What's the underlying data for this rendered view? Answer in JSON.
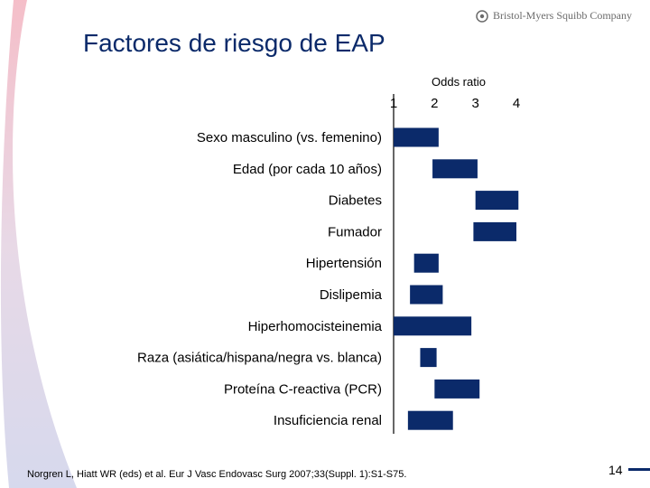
{
  "slide": {
    "title": "Factores de riesgo de EAP",
    "company": "Bristol-Myers Squibb Company",
    "footnote": "Norgren L, Hiatt WR (eds) et al. Eur J Vasc Endovasc Surg 2007;33(Suppl. 1):S1-S75.",
    "page_number": "14",
    "accent_color": "#0b2a6a",
    "logo_icon": "bms-logo-icon"
  },
  "chart_data": {
    "type": "bar",
    "orientation": "horizontal-range",
    "axis_title": "Odds ratio",
    "xlim": [
      1,
      4
    ],
    "xticks": [
      1,
      2,
      3,
      4
    ],
    "bar_color": "#0b2a6a",
    "categories": [
      "Sexo masculino (vs. femenino)",
      "Edad (por cada 10 años)",
      "Diabetes",
      "Fumador",
      "Hipertensión",
      "Dislipemia",
      "Hiperhomocisteinemia",
      "Raza (asiática/hispana/negra vs. blanca)",
      "Proteína C-reactiva (PCR)",
      "Insuficiencia renal"
    ],
    "ranges": [
      [
        1.0,
        2.1
      ],
      [
        1.95,
        3.05
      ],
      [
        3.0,
        4.05
      ],
      [
        2.95,
        4.0
      ],
      [
        1.5,
        2.1
      ],
      [
        1.4,
        2.2
      ],
      [
        1.0,
        2.9
      ],
      [
        1.65,
        2.05
      ],
      [
        2.0,
        3.1
      ],
      [
        1.35,
        2.45
      ]
    ]
  }
}
